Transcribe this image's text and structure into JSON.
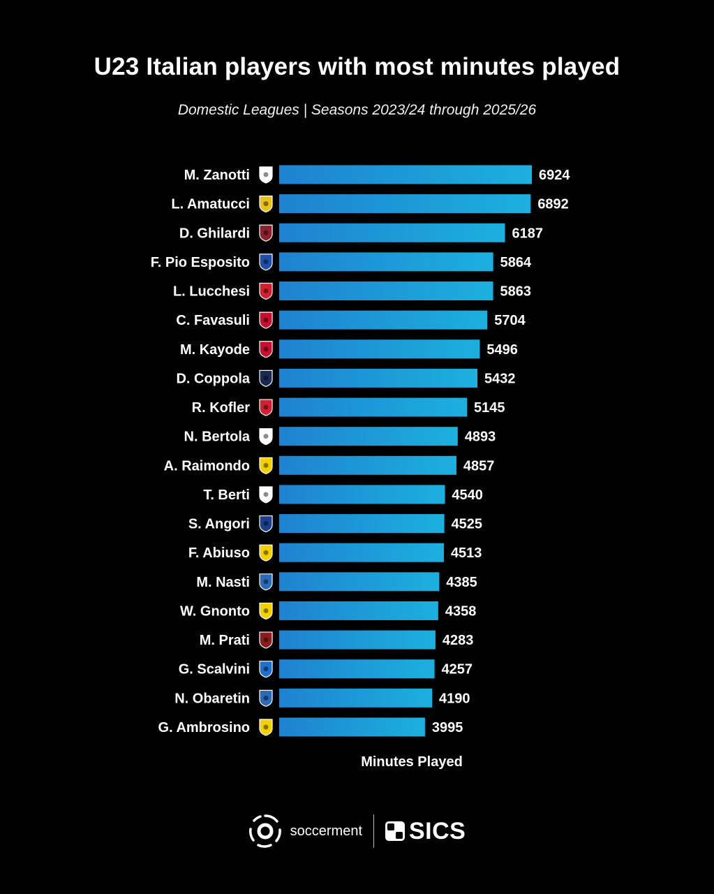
{
  "header": {
    "title": "U23 Italian players with most minutes played",
    "subtitle": "Domestic Leagues | Seasons 2023/24 through 2025/26"
  },
  "chart_data": {
    "type": "bar",
    "orientation": "horizontal",
    "title": "U23 Italian players with most minutes played",
    "subtitle": "Domestic Leagues | Seasons 2023/24 through 2025/26",
    "xlabel": "Minutes Played",
    "ylabel": "",
    "xlim": [
      0,
      6924
    ],
    "grid": false,
    "legend": "none",
    "bar_color": "#1aa9d9",
    "categories": [
      "M. Zanotti",
      "L. Amatucci",
      "D. Ghilardi",
      "F. Pio Esposito",
      "L. Lucchesi",
      "C. Favasuli",
      "M. Kayode",
      "D. Coppola",
      "R. Kofler",
      "N. Bertola",
      "A. Raimondo",
      "T. Berti",
      "S. Angori",
      "F. Abiuso",
      "M. Nasti",
      "W. Gnonto",
      "M. Prati",
      "G. Scalvini",
      "N. Obaretin",
      "G. Ambrosino"
    ],
    "values": [
      6924,
      6892,
      6187,
      5864,
      5863,
      5704,
      5496,
      5432,
      5145,
      4893,
      4857,
      4540,
      4525,
      4513,
      4385,
      4358,
      4283,
      4257,
      4190,
      3995
    ],
    "club_badge_icons": [
      "lugano-badge-icon",
      "las-palmas-badge-icon",
      "roma-badge-icon",
      "inter-badge-icon",
      "monza-badge-icon",
      "genoa-badge-icon",
      "brentford-badge-icon",
      "paris-fc-badge-icon",
      "sudtirol-badge-icon",
      "udinese-badge-icon",
      "frosinone-badge-icon",
      "cesena-badge-icon",
      "pisa-badge-icon",
      "carrarese-badge-icon",
      "empoli-badge-icon",
      "leeds-badge-icon",
      "torino-badge-icon",
      "atalanta-badge-icon",
      "empoli-badge-icon",
      "modena-badge-icon"
    ],
    "club_badge_colors": [
      "#ffffff",
      "#e8c21a",
      "#8e1f2f",
      "#1e4fa8",
      "#d32030",
      "#c8102e",
      "#c8102e",
      "#1b2a52",
      "#d32030",
      "#ffffff",
      "#f5d000",
      "#ffffff",
      "#1b3f8c",
      "#f5d000",
      "#2a6ab8",
      "#f5d000",
      "#8a1e1e",
      "#1f6fd1",
      "#2a6ab8",
      "#f5d000"
    ]
  },
  "footer": {
    "brand_soccerment": "soccerment",
    "brand_sics": "SICS"
  }
}
